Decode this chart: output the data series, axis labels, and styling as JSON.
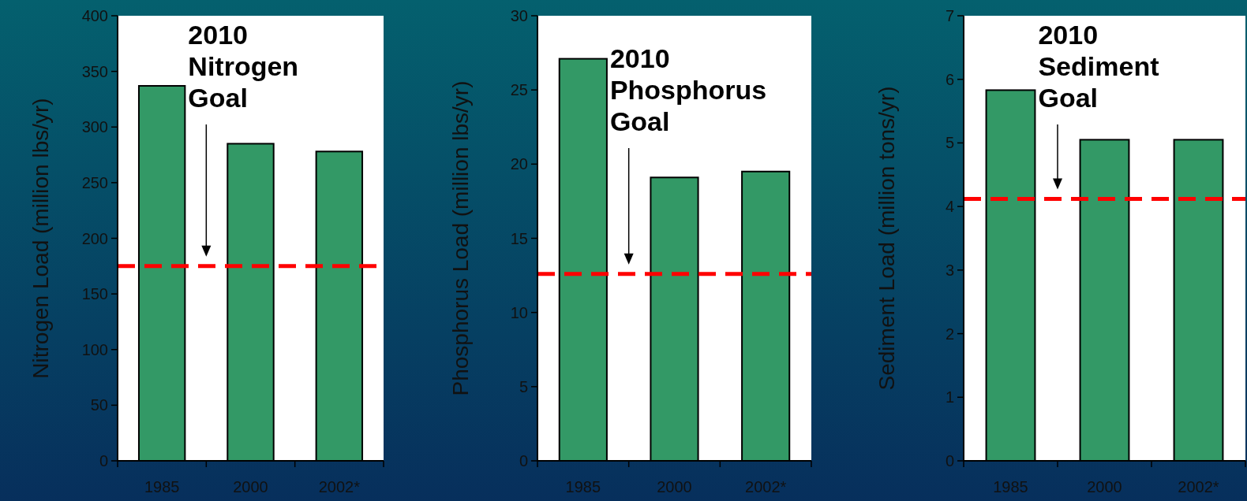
{
  "chart_data": [
    {
      "type": "bar",
      "ylabel": "Nitrogen Load (million lbs/yr)",
      "categories": [
        "1985",
        "2000",
        "2002*"
      ],
      "values": [
        337,
        285,
        278
      ],
      "color": "#339966",
      "ylim": [
        0,
        400
      ],
      "yticks": [
        0,
        50,
        100,
        150,
        200,
        250,
        300,
        350,
        400
      ],
      "ref_lines": [
        {
          "axis": "y",
          "value": 175,
          "color": "#ff0000",
          "line_style": "dashed"
        }
      ],
      "annotations": [
        "2010 Nitrogen Goal"
      ]
    },
    {
      "type": "bar",
      "ylabel": "Phosphorus Load (million lbs/yr)",
      "categories": [
        "1985",
        "2000",
        "2002*"
      ],
      "values": [
        27.1,
        19.1,
        19.5
      ],
      "color": "#339966",
      "ylim": [
        0,
        30
      ],
      "yticks": [
        0,
        5,
        10,
        15,
        20,
        25,
        30
      ],
      "ref_lines": [
        {
          "axis": "y",
          "value": 12.6,
          "color": "#ff0000",
          "line_style": "dashed"
        }
      ],
      "annotations": [
        "2010 Phosphorus Goal"
      ]
    },
    {
      "type": "bar",
      "ylabel": "Sediment Load (million tons/yr)",
      "categories": [
        "1985",
        "2000",
        "2002*"
      ],
      "values": [
        5.83,
        5.05,
        5.05
      ],
      "color": "#339966",
      "ylim": [
        0,
        7
      ],
      "yticks": [
        0,
        1,
        2,
        3,
        4,
        5,
        6,
        7
      ],
      "ref_lines": [
        {
          "axis": "y",
          "value": 4.12,
          "color": "#ff0000",
          "line_style": "dashed"
        }
      ],
      "annotations": [
        "2010 Sediment Goal"
      ]
    }
  ]
}
